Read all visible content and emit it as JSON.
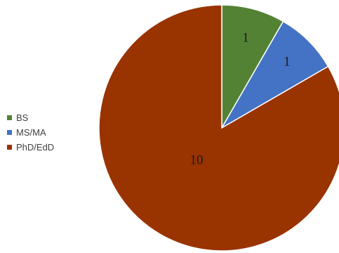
{
  "chart_data": {
    "type": "pie",
    "categories": [
      "BS",
      "MS/MA",
      "PhD/EdD"
    ],
    "values": [
      1,
      1,
      10
    ],
    "data_labels": [
      "1",
      "1",
      "10"
    ],
    "colors": [
      "#548235",
      "#4472C4",
      "#993300"
    ],
    "legend_position": "left",
    "start_angle_degrees": 0,
    "direction": "clockwise"
  }
}
